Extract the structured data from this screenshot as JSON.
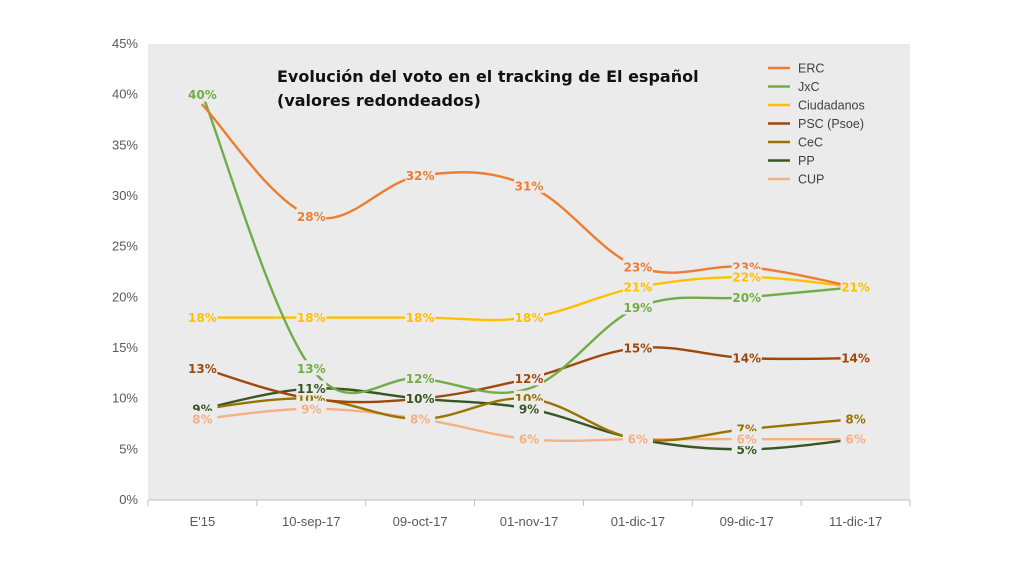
{
  "chart_data": {
    "type": "line",
    "title": "Evolución del voto en el tracking de El español",
    "subtitle": "(valores redondeados)",
    "categories": [
      "E'15",
      "10-sep-17",
      "09-oct-17",
      "01-nov-17",
      "01-dic-17",
      "09-dic-17",
      "11-dic-17"
    ],
    "y_ticks": [
      "0%",
      "5%",
      "10%",
      "15%",
      "20%",
      "25%",
      "30%",
      "35%",
      "40%",
      "45%"
    ],
    "ylim": [
      0,
      45
    ],
    "y_unit": "%",
    "grid": false,
    "plot_background": "#ebebeb",
    "legend_position": "top-right",
    "series": [
      {
        "name": "ERC",
        "color": "#ed7d31",
        "values": [
          39,
          28,
          32,
          31,
          23,
          23,
          21
        ],
        "labels": [
          "",
          "28%",
          "32%",
          "31%",
          "23%",
          "23%",
          ""
        ]
      },
      {
        "name": "JxC",
        "color": "#70ad47",
        "values": [
          40,
          13,
          12,
          11,
          19,
          20,
          21
        ],
        "labels": [
          "40%",
          "13%",
          "12%",
          "",
          "19%",
          "20%",
          ""
        ]
      },
      {
        "name": "Ciudadanos",
        "color": "#ffc000",
        "values": [
          18,
          18,
          18,
          18,
          21,
          22,
          21
        ],
        "labels": [
          "18%",
          "18%",
          "18%",
          "18%",
          "21%",
          "22%",
          "21%"
        ]
      },
      {
        "name": "PSC (Psoe)",
        "color": "#9e480e",
        "values": [
          13,
          10,
          10,
          12,
          15,
          14,
          14
        ],
        "labels": [
          "13%",
          "",
          "10%",
          "12%",
          "15%",
          "14%",
          "14%"
        ]
      },
      {
        "name": "CeC",
        "color": "#997300",
        "values": [
          9,
          10,
          8,
          10,
          6,
          7,
          8
        ],
        "labels": [
          "9%",
          "10%",
          "8%",
          "10%",
          "",
          "7%",
          "8%"
        ]
      },
      {
        "name": "PP",
        "color": "#375623",
        "values": [
          9,
          11,
          10,
          9,
          6,
          5,
          6
        ],
        "labels": [
          "9%",
          "11%",
          "10%",
          "9%",
          "6%",
          "5%",
          "6%"
        ]
      },
      {
        "name": "CUP",
        "color": "#f4b183",
        "values": [
          8,
          9,
          8,
          6,
          6,
          6,
          6
        ],
        "labels": [
          "8%",
          "9%",
          "8%",
          "6%",
          "6%",
          "6%",
          "6%"
        ]
      }
    ]
  }
}
